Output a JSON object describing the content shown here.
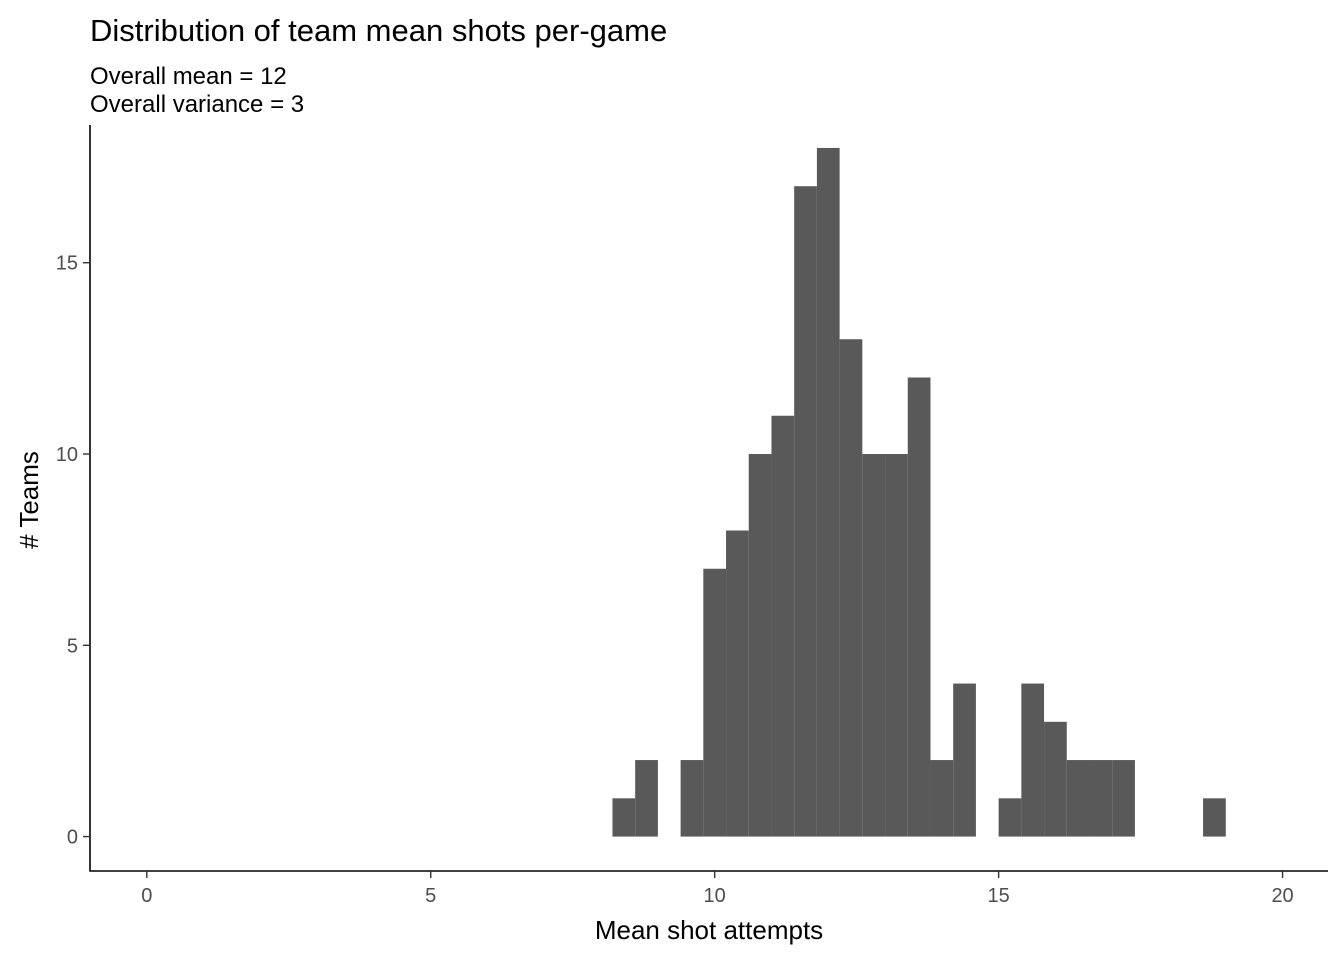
{
  "chart_data": {
    "type": "bar",
    "subtype": "histogram",
    "title": "Distribution of team mean shots per-game",
    "subtitle_lines": [
      "Overall mean =  12",
      "Overall variance =  3"
    ],
    "xlabel": "Mean shot attempts",
    "ylabel": "# Teams",
    "xlim": [
      -1,
      20.8
    ],
    "ylim": [
      -0.9,
      18.6
    ],
    "x_ticks": [
      0,
      5,
      10,
      15,
      20
    ],
    "y_ticks": [
      0,
      5,
      10,
      15
    ],
    "bin_width": 0.4,
    "bar_color": "#595959",
    "bins": [
      {
        "x0": 8.2,
        "x1": 8.6,
        "count": 1
      },
      {
        "x0": 8.6,
        "x1": 9.0,
        "count": 2
      },
      {
        "x0": 9.0,
        "x1": 9.4,
        "count": 0
      },
      {
        "x0": 9.4,
        "x1": 9.8,
        "count": 2
      },
      {
        "x0": 9.8,
        "x1": 10.2,
        "count": 7
      },
      {
        "x0": 10.2,
        "x1": 10.6,
        "count": 8
      },
      {
        "x0": 10.6,
        "x1": 11.0,
        "count": 10
      },
      {
        "x0": 11.0,
        "x1": 11.4,
        "count": 11
      },
      {
        "x0": 11.4,
        "x1": 11.8,
        "count": 17
      },
      {
        "x0": 11.8,
        "x1": 12.2,
        "count": 18
      },
      {
        "x0": 12.2,
        "x1": 12.6,
        "count": 13
      },
      {
        "x0": 12.6,
        "x1": 13.0,
        "count": 10
      },
      {
        "x0": 13.0,
        "x1": 13.4,
        "count": 10
      },
      {
        "x0": 13.4,
        "x1": 13.8,
        "count": 12
      },
      {
        "x0": 13.8,
        "x1": 14.2,
        "count": 2
      },
      {
        "x0": 14.2,
        "x1": 14.6,
        "count": 4
      },
      {
        "x0": 14.6,
        "x1": 15.0,
        "count": 0
      },
      {
        "x0": 15.0,
        "x1": 15.4,
        "count": 1
      },
      {
        "x0": 15.4,
        "x1": 15.8,
        "count": 4
      },
      {
        "x0": 15.8,
        "x1": 16.2,
        "count": 3
      },
      {
        "x0": 16.2,
        "x1": 16.6,
        "count": 2
      },
      {
        "x0": 16.6,
        "x1": 17.0,
        "count": 2
      },
      {
        "x0": 17.0,
        "x1": 17.4,
        "count": 2
      },
      {
        "x0": 17.4,
        "x1": 17.8,
        "count": 0
      },
      {
        "x0": 17.8,
        "x1": 18.2,
        "count": 0
      },
      {
        "x0": 18.2,
        "x1": 18.6,
        "count": 0
      },
      {
        "x0": 18.6,
        "x1": 19.0,
        "count": 1
      }
    ]
  }
}
